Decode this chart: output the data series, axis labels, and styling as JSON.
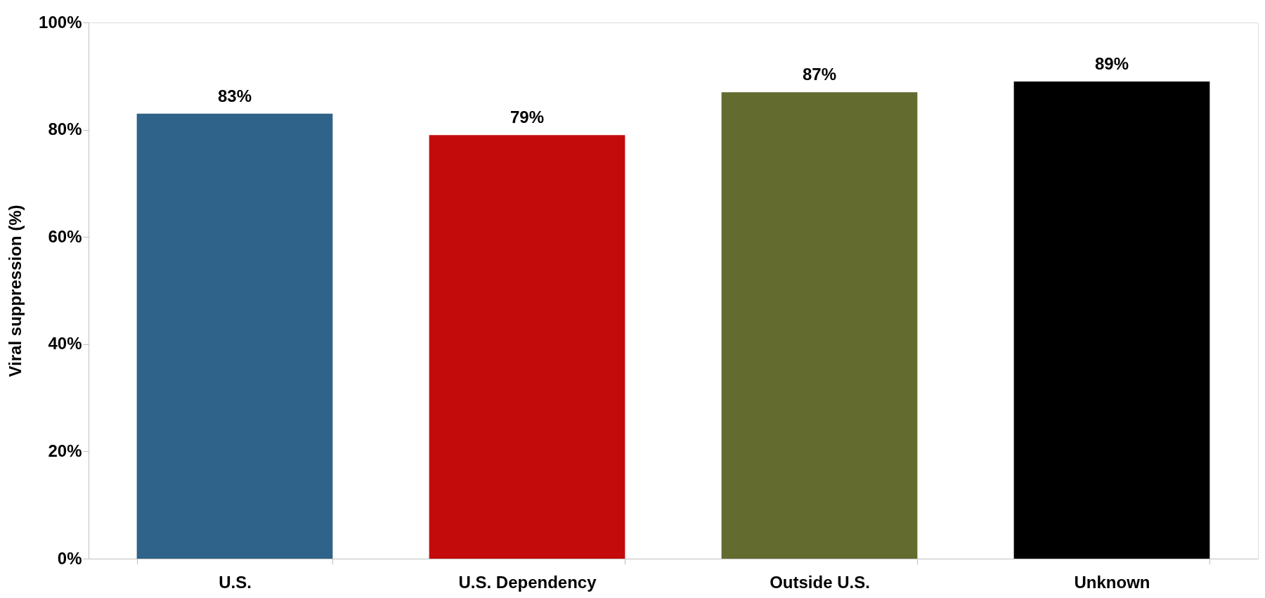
{
  "chart_data": {
    "type": "bar",
    "ylabel": "Viral suppression (%)",
    "categories": [
      "U.S.",
      "U.S. Dependency",
      "Outside U.S.",
      "Unknown"
    ],
    "values": [
      83,
      79,
      87,
      89
    ],
    "colors": [
      "#2f6389",
      "#c30b0b",
      "#636b2f",
      "#000000"
    ],
    "value_labels": [
      "83%",
      "79%",
      "87%",
      "89%"
    ],
    "ylim": [
      0,
      100
    ],
    "yticks": [
      {
        "value": 0,
        "label": "0%"
      },
      {
        "value": 20,
        "label": "20%"
      },
      {
        "value": 40,
        "label": "40%"
      },
      {
        "value": 60,
        "label": "60%"
      },
      {
        "value": 80,
        "label": "80%"
      },
      {
        "value": 100,
        "label": "100%"
      }
    ],
    "grid": false
  }
}
